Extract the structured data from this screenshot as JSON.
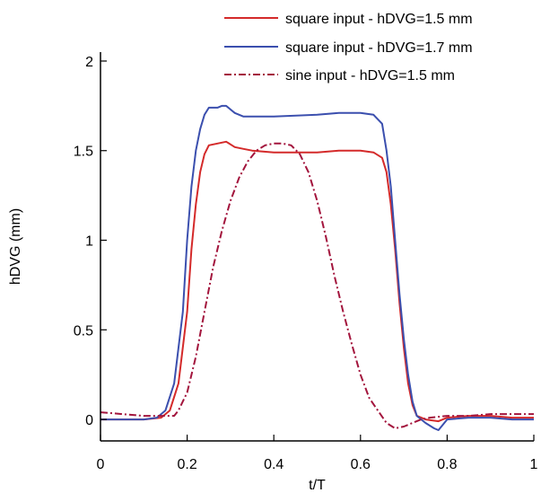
{
  "chart_data": {
    "type": "line",
    "xlabel": "t/T",
    "ylabel": "hDVG (mm)",
    "xlim": [
      0,
      1
    ],
    "ylim": [
      -0.12,
      2.05
    ],
    "x_ticks": [
      0,
      0.2,
      0.4,
      0.6,
      0.8,
      1
    ],
    "x_tick_labels": [
      "0",
      "0.2",
      "0.4",
      "0.6",
      "0.8",
      "1"
    ],
    "y_ticks": [
      0,
      0.5,
      1,
      1.5,
      2
    ],
    "y_tick_labels": [
      "0",
      "0.5",
      "1",
      "1.5",
      "2"
    ],
    "grid": false,
    "legend_position": "top-right",
    "series": [
      {
        "name": "square input - hDVG=1.5 mm",
        "color": "#d42a2a",
        "dash": "solid",
        "points": [
          [
            0,
            0
          ],
          [
            0.05,
            0
          ],
          [
            0.1,
            0
          ],
          [
            0.14,
            0.01
          ],
          [
            0.16,
            0.05
          ],
          [
            0.18,
            0.2
          ],
          [
            0.2,
            0.6
          ],
          [
            0.21,
            0.95
          ],
          [
            0.22,
            1.2
          ],
          [
            0.23,
            1.38
          ],
          [
            0.24,
            1.48
          ],
          [
            0.25,
            1.53
          ],
          [
            0.27,
            1.54
          ],
          [
            0.29,
            1.55
          ],
          [
            0.31,
            1.52
          ],
          [
            0.33,
            1.51
          ],
          [
            0.35,
            1.5
          ],
          [
            0.4,
            1.49
          ],
          [
            0.45,
            1.49
          ],
          [
            0.5,
            1.49
          ],
          [
            0.55,
            1.5
          ],
          [
            0.6,
            1.5
          ],
          [
            0.63,
            1.49
          ],
          [
            0.65,
            1.46
          ],
          [
            0.66,
            1.38
          ],
          [
            0.67,
            1.2
          ],
          [
            0.68,
            0.95
          ],
          [
            0.69,
            0.65
          ],
          [
            0.7,
            0.4
          ],
          [
            0.71,
            0.2
          ],
          [
            0.72,
            0.08
          ],
          [
            0.73,
            0.02
          ],
          [
            0.75,
            0
          ],
          [
            0.78,
            -0.01
          ],
          [
            0.8,
            0.01
          ],
          [
            0.85,
            0.02
          ],
          [
            0.9,
            0.02
          ],
          [
            0.95,
            0.01
          ],
          [
            1,
            0.01
          ]
        ]
      },
      {
        "name": "square input - hDVG=1.7 mm",
        "color": "#3b4fae",
        "dash": "solid",
        "points": [
          [
            0,
            0
          ],
          [
            0.05,
            0
          ],
          [
            0.1,
            0
          ],
          [
            0.13,
            0.01
          ],
          [
            0.15,
            0.05
          ],
          [
            0.17,
            0.2
          ],
          [
            0.19,
            0.6
          ],
          [
            0.2,
            1
          ],
          [
            0.21,
            1.3
          ],
          [
            0.22,
            1.5
          ],
          [
            0.23,
            1.62
          ],
          [
            0.24,
            1.7
          ],
          [
            0.25,
            1.74
          ],
          [
            0.27,
            1.74
          ],
          [
            0.28,
            1.75
          ],
          [
            0.29,
            1.75
          ],
          [
            0.3,
            1.73
          ],
          [
            0.31,
            1.71
          ],
          [
            0.33,
            1.69
          ],
          [
            0.4,
            1.69
          ],
          [
            0.5,
            1.7
          ],
          [
            0.55,
            1.71
          ],
          [
            0.6,
            1.71
          ],
          [
            0.63,
            1.7
          ],
          [
            0.65,
            1.65
          ],
          [
            0.66,
            1.5
          ],
          [
            0.67,
            1.3
          ],
          [
            0.68,
            1
          ],
          [
            0.69,
            0.7
          ],
          [
            0.7,
            0.45
          ],
          [
            0.71,
            0.25
          ],
          [
            0.72,
            0.1
          ],
          [
            0.73,
            0.02
          ],
          [
            0.75,
            -0.02
          ],
          [
            0.77,
            -0.05
          ],
          [
            0.78,
            -0.06
          ],
          [
            0.79,
            -0.03
          ],
          [
            0.8,
            0
          ],
          [
            0.85,
            0.01
          ],
          [
            0.9,
            0.01
          ],
          [
            0.95,
            0
          ],
          [
            1,
            0
          ]
        ]
      },
      {
        "name": "sine input - hDVG=1.5 mm",
        "color": "#a3153d",
        "dash": "dashdot",
        "points": [
          [
            0,
            0.04
          ],
          [
            0.05,
            0.03
          ],
          [
            0.1,
            0.02
          ],
          [
            0.15,
            0.02
          ],
          [
            0.17,
            0.02
          ],
          [
            0.18,
            0.05
          ],
          [
            0.2,
            0.15
          ],
          [
            0.22,
            0.35
          ],
          [
            0.24,
            0.6
          ],
          [
            0.26,
            0.85
          ],
          [
            0.28,
            1.05
          ],
          [
            0.3,
            1.22
          ],
          [
            0.32,
            1.35
          ],
          [
            0.34,
            1.44
          ],
          [
            0.36,
            1.5
          ],
          [
            0.38,
            1.53
          ],
          [
            0.4,
            1.54
          ],
          [
            0.42,
            1.54
          ],
          [
            0.44,
            1.53
          ],
          [
            0.46,
            1.48
          ],
          [
            0.48,
            1.38
          ],
          [
            0.5,
            1.22
          ],
          [
            0.52,
            1.02
          ],
          [
            0.54,
            0.8
          ],
          [
            0.56,
            0.6
          ],
          [
            0.58,
            0.42
          ],
          [
            0.6,
            0.25
          ],
          [
            0.62,
            0.12
          ],
          [
            0.64,
            0.05
          ],
          [
            0.66,
            -0.02
          ],
          [
            0.68,
            -0.05
          ],
          [
            0.7,
            -0.04
          ],
          [
            0.72,
            -0.02
          ],
          [
            0.74,
            0
          ],
          [
            0.76,
            0.01
          ],
          [
            0.8,
            0.02
          ],
          [
            0.85,
            0.02
          ],
          [
            0.9,
            0.03
          ],
          [
            0.95,
            0.03
          ],
          [
            1,
            0.03
          ]
        ]
      }
    ]
  }
}
